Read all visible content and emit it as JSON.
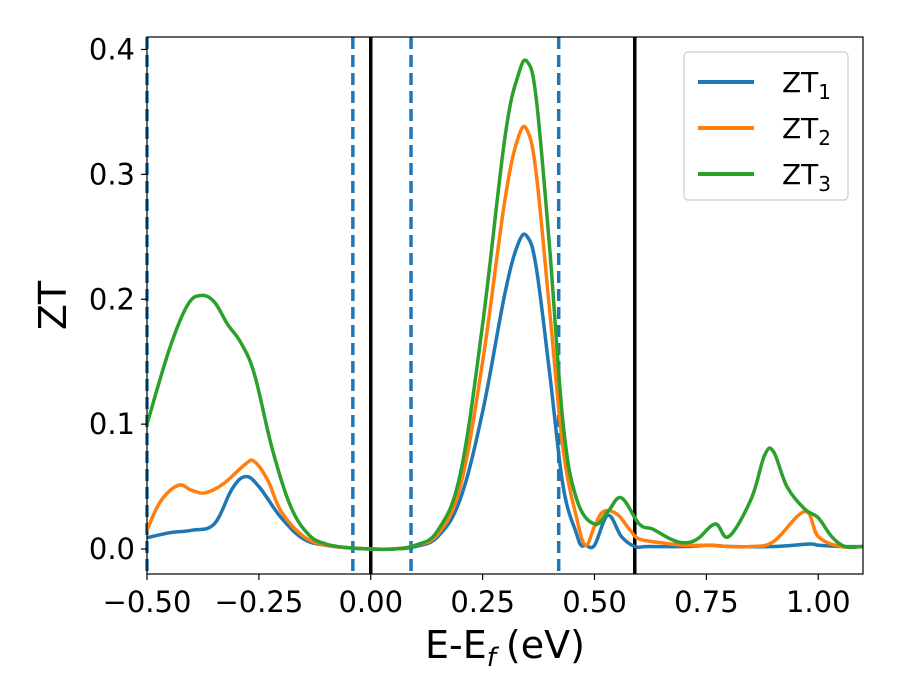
{
  "chart_data": {
    "type": "line",
    "title": "",
    "xlabel": "E-E",
    "xlabel_sub": "f",
    "xlabel_unit": "(eV)",
    "ylabel": "ZT",
    "xlim": [
      -0.5,
      1.1
    ],
    "ylim": [
      -0.02,
      0.41
    ],
    "grid": false,
    "legend_position": "top-right",
    "x_ticks": [
      {
        "value": -0.5,
        "label": "−0.50"
      },
      {
        "value": -0.25,
        "label": "−0.25"
      },
      {
        "value": 0.0,
        "label": "0.00"
      },
      {
        "value": 0.25,
        "label": "0.25"
      },
      {
        "value": 0.5,
        "label": "0.50"
      },
      {
        "value": 0.75,
        "label": "0.75"
      },
      {
        "value": 1.0,
        "label": "1.00"
      }
    ],
    "y_ticks": [
      {
        "value": 0.0,
        "label": "0.0"
      },
      {
        "value": 0.1,
        "label": "0.1"
      },
      {
        "value": 0.2,
        "label": "0.2"
      },
      {
        "value": 0.3,
        "label": "0.3"
      },
      {
        "value": 0.4,
        "label": "0.4"
      }
    ],
    "series": [
      {
        "name": "ZT",
        "name_sub": "1",
        "color": "#1f77b4",
        "x": [
          -0.5,
          -0.45,
          -0.4,
          -0.35,
          -0.31,
          -0.28,
          -0.25,
          -0.2,
          -0.15,
          -0.1,
          -0.05,
          0,
          0.05,
          0.1,
          0.15,
          0.2,
          0.25,
          0.3,
          0.33,
          0.35,
          0.37,
          0.4,
          0.43,
          0.46,
          0.47,
          0.48,
          0.5,
          0.53,
          0.56,
          0.59,
          0.62,
          0.7,
          0.76,
          0.8,
          0.9,
          0.98,
          1.0,
          1.05,
          1.1
        ],
        "y": [
          0.009,
          0.013,
          0.015,
          0.02,
          0.048,
          0.058,
          0.05,
          0.025,
          0.008,
          0.003,
          0.001,
          0.0,
          0.0,
          0.002,
          0.01,
          0.04,
          0.11,
          0.205,
          0.245,
          0.25,
          0.225,
          0.14,
          0.05,
          0.012,
          0.003,
          0.003,
          0.003,
          0.027,
          0.01,
          0.002,
          0.002,
          0.002,
          0.003,
          0.002,
          0.002,
          0.004,
          0.003,
          0.002,
          0.002
        ]
      },
      {
        "name": "ZT",
        "name_sub": "2",
        "color": "#ff7f0e",
        "x": [
          -0.5,
          -0.47,
          -0.43,
          -0.4,
          -0.37,
          -0.33,
          -0.28,
          -0.26,
          -0.23,
          -0.2,
          -0.15,
          -0.1,
          -0.05,
          0,
          0.05,
          0.1,
          0.15,
          0.2,
          0.25,
          0.3,
          0.33,
          0.35,
          0.37,
          0.4,
          0.43,
          0.46,
          0.48,
          0.5,
          0.52,
          0.55,
          0.58,
          0.6,
          0.65,
          0.7,
          0.75,
          0.8,
          0.85,
          0.9,
          0.97,
          1.0,
          1.05,
          1.1
        ],
        "y": [
          0.015,
          0.038,
          0.051,
          0.047,
          0.045,
          0.052,
          0.068,
          0.07,
          0.055,
          0.03,
          0.01,
          0.003,
          0.001,
          0.0,
          0.0,
          0.003,
          0.012,
          0.05,
          0.15,
          0.28,
          0.33,
          0.335,
          0.3,
          0.19,
          0.08,
          0.025,
          0.003,
          0.018,
          0.03,
          0.028,
          0.015,
          0.008,
          0.005,
          0.003,
          0.003,
          0.002,
          0.002,
          0.006,
          0.03,
          0.01,
          0.002,
          0.002
        ]
      },
      {
        "name": "ZT",
        "name_sub": "3",
        "color": "#2ca02c",
        "x": [
          -0.5,
          -0.45,
          -0.41,
          -0.38,
          -0.35,
          -0.32,
          -0.29,
          -0.26,
          -0.22,
          -0.18,
          -0.14,
          -0.1,
          -0.05,
          0,
          0.05,
          0.1,
          0.15,
          0.2,
          0.25,
          0.3,
          0.33,
          0.35,
          0.37,
          0.4,
          0.43,
          0.46,
          0.5,
          0.53,
          0.56,
          0.6,
          0.63,
          0.67,
          0.7,
          0.73,
          0.77,
          0.8,
          0.85,
          0.88,
          0.9,
          0.93,
          0.97,
          1.0,
          1.03,
          1.06,
          1.1
        ],
        "y": [
          0.1,
          0.16,
          0.195,
          0.203,
          0.198,
          0.18,
          0.165,
          0.14,
          0.08,
          0.035,
          0.012,
          0.004,
          0.001,
          0.0,
          0.0,
          0.003,
          0.015,
          0.06,
          0.18,
          0.33,
          0.38,
          0.39,
          0.36,
          0.24,
          0.1,
          0.04,
          0.02,
          0.03,
          0.041,
          0.02,
          0.016,
          0.008,
          0.005,
          0.008,
          0.02,
          0.01,
          0.04,
          0.075,
          0.078,
          0.05,
          0.032,
          0.025,
          0.01,
          0.002,
          0.002
        ]
      }
    ],
    "vertical_lines": [
      {
        "x": -0.5,
        "style": "dashed",
        "color": "#1f77b4"
      },
      {
        "x": -0.04,
        "style": "dashed",
        "color": "#1f77b4"
      },
      {
        "x": 0.0,
        "style": "solid",
        "color": "#000000"
      },
      {
        "x": 0.09,
        "style": "dashed",
        "color": "#1f77b4"
      },
      {
        "x": 0.42,
        "style": "dashed",
        "color": "#1f77b4"
      },
      {
        "x": 0.59,
        "style": "solid",
        "color": "#000000"
      }
    ]
  }
}
